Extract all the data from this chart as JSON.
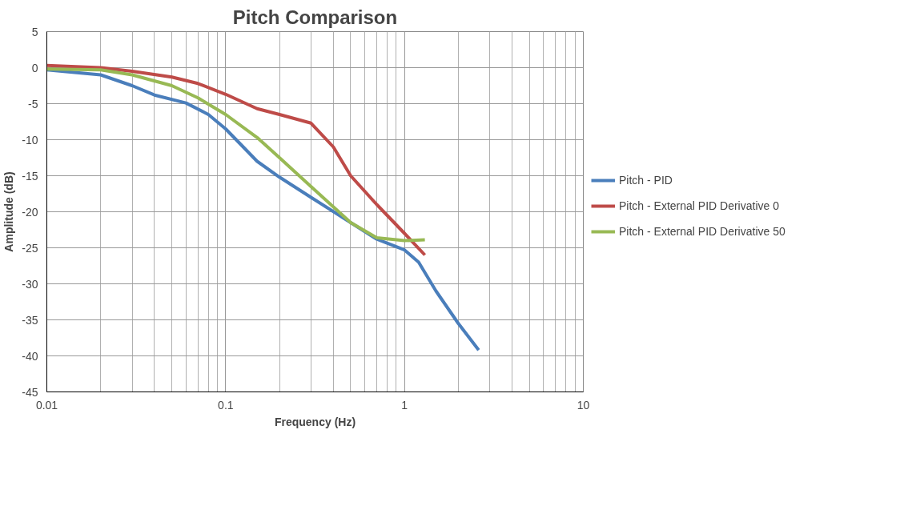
{
  "chart_data": {
    "type": "line",
    "title": "Pitch Comparison",
    "xlabel": "Frequency (Hz)",
    "ylabel": "Amplitude (dB)",
    "log": "x",
    "grid": true,
    "legend": "right",
    "marker": "none",
    "line_style": "solid",
    "xlim": [
      0.01,
      10
    ],
    "xticks": [
      0.01,
      0.1,
      1,
      10
    ],
    "ylim": [
      -45,
      5
    ],
    "yticks": [
      5,
      0,
      -5,
      -10,
      -15,
      -20,
      -25,
      -30,
      -35,
      -40,
      -45
    ],
    "series": [
      {
        "name": "Pitch - PID",
        "color": "#4a7ebb",
        "x": [
          0.01,
          0.02,
          0.03,
          0.04,
          0.06,
          0.08,
          0.1,
          0.15,
          0.2,
          0.3,
          0.5,
          0.7,
          1.0,
          1.2,
          1.5,
          2.0,
          2.6
        ],
        "values": [
          -0.3,
          -1,
          -2.5,
          -3.8,
          -4.9,
          -6.5,
          -8.5,
          -13,
          -15.2,
          -18,
          -21.5,
          -23.8,
          -25.3,
          -27,
          -31,
          -35.5,
          -39.2
        ]
      },
      {
        "name": "Pitch - External PID Derivative 0",
        "color": "#be4b48",
        "x": [
          0.01,
          0.02,
          0.03,
          0.05,
          0.07,
          0.1,
          0.15,
          0.2,
          0.3,
          0.4,
          0.5,
          0.7,
          1.0,
          1.3
        ],
        "values": [
          0.3,
          0,
          -0.5,
          -1.3,
          -2.2,
          -3.7,
          -5.7,
          -6.5,
          -7.7,
          -11,
          -15,
          -19,
          -23,
          -26
        ]
      },
      {
        "name": "Pitch - External PID Derivative 50",
        "color": "#98b954",
        "x": [
          0.01,
          0.02,
          0.03,
          0.05,
          0.07,
          0.1,
          0.15,
          0.2,
          0.3,
          0.5,
          0.7,
          1.0,
          1.3
        ],
        "values": [
          -0.2,
          -0.3,
          -1,
          -2.5,
          -4.2,
          -6.5,
          -9.7,
          -12.5,
          -16.5,
          -21.5,
          -23.6,
          -24,
          -23.9
        ]
      }
    ]
  }
}
